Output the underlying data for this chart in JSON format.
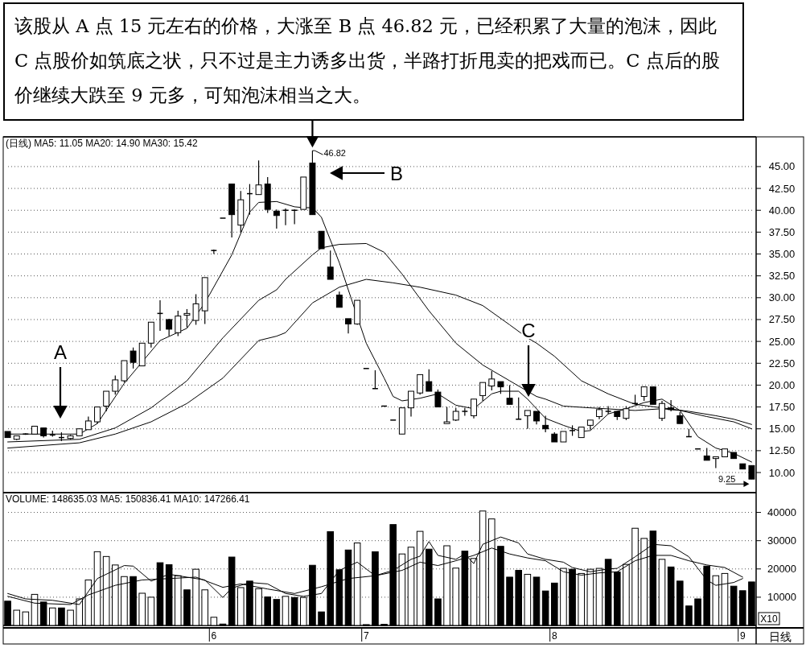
{
  "chart_data": [
    {
      "type": "candlestick",
      "title": "该股从 A 点 15 元左右的价格，大涨至 B 点 46.82 元，已经积累了大量的泡沫，因此 C 点股价如筑底之状，只不过是主力诱多出货，半路打折甩卖的把戏而已。C 点后的股价继续大跌至 9 元多，可知泡沫相当之大。",
      "subtitle": "(日线) MA5: 11.05 MA20: 14.90 MA30: 15.42",
      "categories": [
        null,
        null,
        null,
        null,
        null,
        null,
        null,
        null,
        null,
        null,
        null,
        null,
        null,
        null,
        null,
        null,
        null,
        null,
        null,
        null,
        null,
        null,
        null,
        null,
        null,
        null,
        null,
        null,
        null,
        null,
        null,
        null,
        null,
        null,
        null,
        null,
        null,
        null,
        null,
        null,
        null,
        null,
        null,
        null,
        null,
        null,
        null,
        null,
        null,
        null,
        null,
        null,
        null,
        null,
        null,
        null,
        null,
        null,
        null,
        null,
        null,
        null,
        null,
        null,
        null,
        null,
        null,
        null,
        null,
        null,
        null,
        null,
        null,
        null,
        null,
        null,
        null,
        null,
        null,
        null,
        null,
        null,
        null,
        null
      ],
      "ohlc": [
        [
          14.7,
          14.7,
          14.0,
          14.0
        ],
        [
          13.8,
          14.2,
          13.7,
          14.2
        ],
        [
          14.4,
          14.5,
          14.3,
          14.4
        ],
        [
          14.4,
          15.3,
          14.4,
          15.3
        ],
        [
          15.1,
          15.1,
          14.0,
          14.2
        ],
        [
          14.3,
          14.8,
          14.1,
          14.3
        ],
        [
          14.0,
          14.6,
          13.6,
          14.0
        ],
        [
          13.9,
          14.3,
          13.8,
          14.2
        ],
        [
          14.2,
          15.0,
          14.2,
          15.0
        ],
        [
          14.9,
          16.4,
          14.9,
          15.9
        ],
        [
          15.8,
          17.5,
          15.6,
          17.5
        ],
        [
          17.6,
          19.3,
          17.0,
          19.3
        ],
        [
          19.3,
          21.1,
          18.9,
          20.6
        ],
        [
          20.5,
          22.8,
          20.3,
          22.8
        ],
        [
          23.9,
          24.3,
          21.9,
          22.6
        ],
        [
          22.2,
          24.8,
          22.2,
          24.8
        ],
        [
          24.8,
          27.2,
          24.3,
          27.2
        ],
        [
          28.2,
          29.7,
          26.2,
          28.2
        ],
        [
          27.5,
          27.6,
          25.6,
          26.4
        ],
        [
          26.0,
          28.5,
          25.6,
          27.9
        ],
        [
          28.0,
          28.7,
          26.6,
          28.2
        ],
        [
          27.4,
          30.4,
          26.9,
          29.3
        ],
        [
          28.5,
          32.3,
          27.0,
          32.3
        ],
        [
          35.4,
          35.5,
          35.0,
          35.4
        ],
        [
          39.1,
          39.1,
          39.1,
          39.1
        ],
        [
          43.0,
          43.0,
          36.9,
          39.5
        ],
        [
          38.3,
          42.2,
          37.5,
          41.2
        ],
        [
          41.9,
          43.0,
          39.5,
          41.9
        ],
        [
          41.8,
          45.7,
          41.8,
          42.9
        ],
        [
          43.0,
          43.8,
          39.7,
          40.1
        ],
        [
          39.9,
          40.1,
          37.9,
          39.4
        ],
        [
          40.0,
          40.2,
          38.3,
          40.0
        ],
        [
          40.0,
          40.1,
          38.4,
          40.0
        ],
        [
          40.1,
          43.8,
          40.1,
          43.8
        ],
        [
          45.4,
          46.82,
          39.5,
          39.5
        ],
        [
          37.6,
          37.6,
          35.6,
          35.6
        ],
        [
          33.5,
          35.4,
          32.1,
          32.1
        ],
        [
          30.3,
          30.7,
          28.9,
          28.9
        ],
        [
          27.6,
          27.6,
          25.9,
          27.0
        ],
        [
          27.0,
          29.7,
          26.9,
          29.7
        ],
        [
          21.9,
          21.9,
          21.9,
          21.9
        ],
        [
          19.6,
          21.7,
          19.6,
          19.6
        ],
        [
          17.6,
          17.6,
          17.6,
          17.6
        ],
        [
          16.0,
          16.0,
          16.0,
          16.0
        ],
        [
          14.4,
          17.4,
          14.4,
          17.4
        ],
        [
          17.4,
          19.3,
          16.4,
          19.3
        ],
        [
          19.1,
          21.2,
          18.9,
          21.2
        ],
        [
          20.4,
          21.8,
          19.3,
          19.3
        ],
        [
          19.2,
          19.5,
          17.5,
          17.5
        ],
        [
          15.6,
          17.5,
          15.6,
          15.8
        ],
        [
          16.0,
          17.4,
          15.9,
          17.0
        ],
        [
          17.0,
          17.4,
          16.5,
          17.0
        ],
        [
          16.5,
          18.4,
          16.2,
          18.4
        ],
        [
          18.8,
          20.3,
          18.2,
          20.3
        ],
        [
          19.9,
          21.6,
          19.4,
          20.7
        ],
        [
          20.4,
          20.4,
          19.0,
          19.8
        ],
        [
          18.5,
          20.0,
          17.8,
          17.8
        ],
        [
          16.1,
          18.6,
          16.1,
          16.1
        ],
        [
          16.5,
          17.1,
          15.0,
          17.1
        ],
        [
          17.0,
          17.0,
          15.5,
          15.9
        ],
        [
          15.4,
          16.5,
          14.6,
          15.0
        ],
        [
          14.4,
          14.6,
          13.5,
          13.5
        ],
        [
          13.5,
          14.7,
          13.5,
          14.7
        ],
        [
          14.8,
          15.4,
          14.2,
          14.8
        ],
        [
          14.0,
          15.2,
          14.0,
          15.2
        ],
        [
          15.4,
          16.0,
          14.9,
          16.0
        ],
        [
          16.4,
          17.5,
          16.1,
          17.2
        ],
        [
          17.0,
          17.6,
          16.7,
          17.0
        ],
        [
          17.0,
          17.0,
          16.0,
          16.4
        ],
        [
          16.2,
          17.6,
          16.0,
          17.3
        ],
        [
          17.9,
          18.9,
          17.9,
          17.9
        ],
        [
          18.7,
          19.8,
          18.2,
          19.8
        ],
        [
          19.8,
          19.8,
          17.8,
          17.8
        ],
        [
          16.2,
          18.2,
          15.9,
          17.9
        ],
        [
          17.4,
          18.3,
          17.0,
          17.2
        ],
        [
          16.5,
          16.9,
          15.6,
          15.6
        ],
        [
          14.1,
          15.0,
          14.1,
          14.1
        ],
        [
          12.7,
          12.7,
          12.7,
          12.7
        ],
        [
          11.9,
          12.8,
          11.4,
          11.4
        ],
        [
          11.6,
          11.8,
          10.5,
          11.8
        ],
        [
          11.8,
          12.7,
          11.8,
          12.7
        ],
        [
          12.3,
          12.3,
          11.6,
          11.6
        ],
        [
          11.0,
          11.0,
          10.4,
          10.4
        ],
        [
          10.8,
          10.8,
          9.25,
          9.25
        ]
      ],
      "series": [
        {
          "type": "line",
          "color": "#000000",
          "values": [
            14.4,
            null,
            null,
            null,
            null,
            null,
            null,
            null,
            14.4,
            null,
            15.6,
            null,
            null,
            20.2,
            null,
            null,
            null,
            25.1,
            null,
            null,
            26.5,
            null,
            29.4,
            null,
            null,
            34.9,
            null,
            39.8,
            40.9,
            null,
            41.0,
            null,
            40.4,
            40.3,
            40.3,
            39.2,
            null,
            34.0,
            30.9,
            null,
            24.8,
            null,
            20.8,
            18.7,
            18.2,
            null,
            18.5,
            null,
            19.0,
            null,
            17.7,
            null,
            17.3,
            null,
            19.0,
            19.3,
            null,
            19.3,
            18.4,
            null,
            16.2,
            null,
            15.4,
            null,
            14.7,
            14.8,
            null,
            16.7,
            null,
            17.3,
            null,
            18.0,
            null,
            18.4,
            null,
            17.1,
            null,
            14.1,
            null,
            12.8,
            null,
            12.2,
            null,
            11.2
          ]
        },
        {
          "type": "line",
          "color": "#000000",
          "values": [
            13.5,
            null,
            null,
            null,
            null,
            null,
            null,
            null,
            13.8,
            null,
            null,
            null,
            15.1,
            null,
            null,
            null,
            17.4,
            null,
            null,
            null,
            20.5,
            null,
            null,
            null,
            25.4,
            null,
            null,
            null,
            29.7,
            null,
            30.9,
            32.1,
            null,
            null,
            34.9,
            35.7,
            null,
            36.1,
            null,
            null,
            36.2,
            null,
            35.2,
            null,
            32.7,
            null,
            null,
            28.5,
            null,
            null,
            24.8,
            null,
            null,
            22.3,
            null,
            null,
            20.5,
            null,
            null,
            18.7,
            18.4,
            null,
            17.6,
            null,
            null,
            17.4,
            null,
            null,
            null,
            null,
            17.1,
            null,
            null,
            17.3,
            null,
            17.1,
            null,
            null,
            16.4,
            null,
            null,
            15.8,
            null,
            15.0
          ]
        },
        {
          "type": "line",
          "color": "#000000",
          "values": [
            12.8,
            null,
            null,
            null,
            null,
            null,
            null,
            null,
            13.4,
            null,
            null,
            null,
            14.4,
            null,
            null,
            null,
            15.8,
            null,
            null,
            null,
            17.9,
            null,
            null,
            null,
            20.8,
            null,
            null,
            null,
            25.1,
            null,
            25.6,
            26.0,
            null,
            null,
            29.4,
            null,
            null,
            31.2,
            null,
            null,
            32.1,
            null,
            null,
            31.7,
            null,
            null,
            31.2,
            null,
            null,
            null,
            30.3,
            null,
            null,
            29.1,
            null,
            null,
            26.9,
            null,
            25.4,
            24.8,
            null,
            23.3,
            null,
            null,
            20.5,
            null,
            null,
            19.0,
            null,
            null,
            17.8,
            null,
            null,
            17.4,
            null,
            null,
            17.0,
            null,
            null,
            16.5,
            null,
            16.1,
            null,
            15.5
          ]
        }
      ],
      "ylim": [
        7.7,
        48.4
      ],
      "yticks": [
        {
          "value": 10,
          "label": "10.00"
        },
        {
          "value": 12.5,
          "label": "12.50"
        },
        {
          "value": 15,
          "label": "15.00"
        },
        {
          "value": 17.5,
          "label": "17.50"
        },
        {
          "value": 20,
          "label": "20.00"
        },
        {
          "value": 22.5,
          "label": "22.50"
        },
        {
          "value": 25,
          "label": "25.00"
        },
        {
          "value": 27.5,
          "label": "27.50"
        },
        {
          "value": 30,
          "label": "30.00"
        },
        {
          "value": 32.5,
          "label": "32.50"
        },
        {
          "value": 35,
          "label": "35.00"
        },
        {
          "value": 37.5,
          "label": "37.50"
        },
        {
          "value": 40,
          "label": "40.00"
        },
        {
          "value": 42.5,
          "label": "42.50"
        },
        {
          "value": 45,
          "label": "45.00"
        }
      ],
      "tick_labels": "y",
      "grid": "y",
      "annotations": [
        "A",
        "B",
        "C",
        "46.82",
        "9.25"
      ]
    },
    {
      "type": "bar",
      "title": "VOLUME: 148635.03 MA5: 150836.41 MA10: 147266.41",
      "categories": [
        null,
        null,
        null,
        null,
        null,
        null,
        null,
        null,
        null,
        null,
        null,
        null,
        null,
        null,
        null,
        null,
        null,
        null,
        null,
        null,
        null,
        null,
        null,
        "6",
        null,
        null,
        null,
        null,
        null,
        null,
        null,
        null,
        null,
        null,
        null,
        null,
        null,
        null,
        null,
        null,
        "7",
        null,
        null,
        null,
        null,
        null,
        null,
        null,
        null,
        null,
        null,
        null,
        null,
        null,
        null,
        null,
        null,
        null,
        null,
        null,
        null,
        "8",
        null,
        null,
        null,
        null,
        null,
        null,
        null,
        null,
        null,
        null,
        null,
        null,
        null,
        null,
        null,
        null,
        null,
        null,
        null,
        null,
        "9",
        null
      ],
      "series": [
        {
          "type": "bar",
          "values": [
            8600,
            5400,
            4800,
            11000,
            8300,
            6200,
            6200,
            5400,
            9400,
            16100,
            26100,
            24400,
            21400,
            17300,
            17300,
            11400,
            10000,
            22200,
            21500,
            17600,
            12600,
            19900,
            12600,
            2900,
            500,
            24200,
            13400,
            15700,
            13000,
            10100,
            9200,
            10300,
            9900,
            9900,
            21300,
            4800,
            33200,
            19700,
            26700,
            29200,
            300,
            26100,
            400,
            35700,
            25300,
            27700,
            33300,
            27000,
            9400,
            28200,
            20300,
            26300,
            23700,
            40500,
            37700,
            28000,
            17100,
            19500,
            18100,
            17100,
            12200,
            15000,
            20200,
            19900,
            18400,
            19900,
            20200,
            23400,
            18900,
            21600,
            34400,
            30800,
            33400,
            23400,
            20700,
            15700,
            6900,
            9400,
            21000,
            17600,
            18400,
            13900,
            12300,
            15400
          ],
          "colors": [
            "#000000",
            "#ffffff",
            "#ffffff",
            "#ffffff",
            "#000000",
            "#ffffff",
            "#000000",
            "#ffffff",
            "#ffffff",
            "#ffffff",
            "#ffffff",
            "#ffffff",
            "#ffffff",
            "#ffffff",
            "#000000",
            "#ffffff",
            "#ffffff",
            "#000000",
            "#000000",
            "#ffffff",
            "#000000",
            "#ffffff",
            "#ffffff",
            "#ffffff",
            "#000000",
            "#000000",
            "#ffffff",
            "#000000",
            "#ffffff",
            "#000000",
            "#000000",
            "#ffffff",
            "#000000",
            "#ffffff",
            "#000000",
            "#000000",
            "#000000",
            "#000000",
            "#000000",
            "#ffffff",
            "#000000",
            "#000000",
            "#000000",
            "#000000",
            "#ffffff",
            "#ffffff",
            "#ffffff",
            "#000000",
            "#000000",
            "#ffffff",
            "#ffffff",
            "#000000",
            "#ffffff",
            "#ffffff",
            "#ffffff",
            "#000000",
            "#000000",
            "#000000",
            "#ffffff",
            "#000000",
            "#000000",
            "#000000",
            "#ffffff",
            "#000000",
            "#ffffff",
            "#ffffff",
            "#ffffff",
            "#000000",
            "#000000",
            "#ffffff",
            "#ffffff",
            "#ffffff",
            "#000000",
            "#ffffff",
            "#000000",
            "#000000",
            "#000000",
            "#000000",
            "#000000",
            "#ffffff",
            "#ffffff",
            "#000000",
            "#000000",
            "#000000"
          ]
        },
        {
          "type": "line",
          "color": "#000000",
          "values": [
            11300,
            null,
            9400,
            null,
            null,
            8900,
            null,
            null,
            7400,
            null,
            16600,
            null,
            null,
            21200,
            21000,
            null,
            15700,
            null,
            18100,
            null,
            17100,
            null,
            16100,
            null,
            9900,
            13200,
            null,
            15200,
            null,
            14700,
            null,
            11300,
            null,
            10300,
            null,
            11300,
            null,
            19500,
            null,
            22400,
            null,
            17600,
            null,
            19500,
            null,
            23400,
            24500,
            29700,
            24800,
            null,
            23400,
            25300,
            21900,
            28700,
            null,
            31300,
            null,
            29200,
            25300,
            null,
            23400,
            null,
            22400,
            20500,
            null,
            19000,
            null,
            20000,
            20200,
            null,
            24300,
            null,
            28700,
            null,
            28200,
            null,
            24300,
            null,
            16100,
            14200,
            null,
            15200,
            16600,
            null
          ]
        },
        {
          "type": "line",
          "color": "#000000",
          "values": [
            10300,
            null,
            null,
            7900,
            null,
            null,
            null,
            7400,
            null,
            10800,
            null,
            null,
            14200,
            null,
            null,
            16100,
            null,
            null,
            16600,
            null,
            null,
            17100,
            null,
            null,
            13500,
            null,
            14700,
            null,
            null,
            12900,
            null,
            null,
            11300,
            null,
            null,
            13700,
            null,
            null,
            16600,
            null,
            null,
            17600,
            null,
            null,
            19500,
            null,
            22400,
            null,
            21200,
            null,
            22900,
            null,
            24800,
            null,
            27400,
            null,
            25300,
            null,
            23900,
            null,
            22900,
            null,
            19000,
            null,
            17800,
            null,
            18600,
            null,
            19000,
            null,
            22900,
            null,
            24800,
            null,
            24800,
            null,
            22900,
            null,
            21400,
            null,
            20500,
            null,
            17100,
            null
          ]
        }
      ],
      "ylim": [
        0,
        47000
      ],
      "yticks": [
        10000,
        20000,
        30000,
        40000
      ],
      "grid": "y",
      "annotations": [
        "X10",
        "日线"
      ]
    }
  ]
}
